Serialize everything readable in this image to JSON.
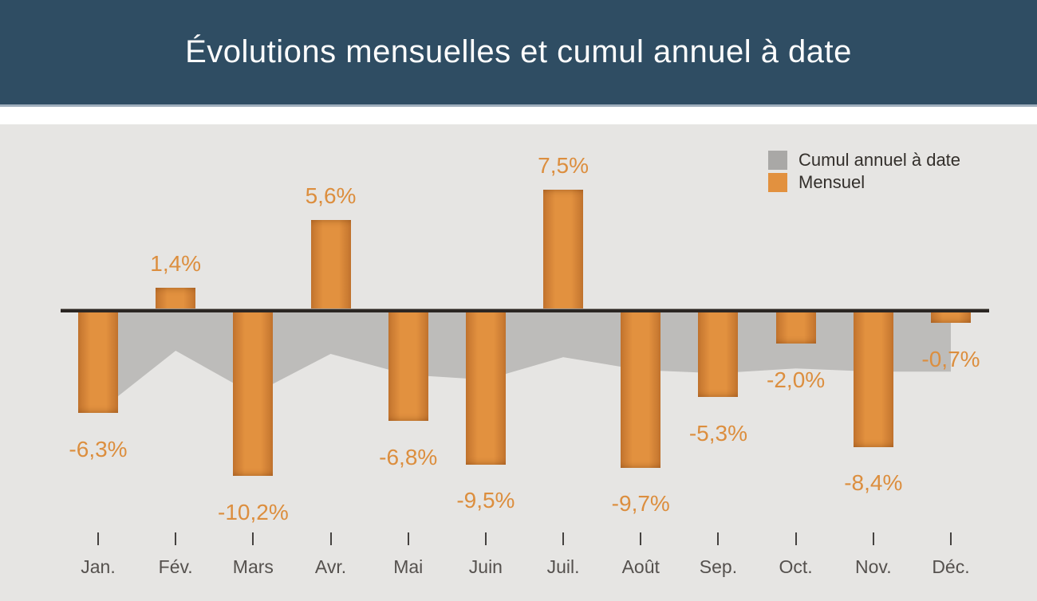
{
  "header": {
    "title": "Évolutions mensuelles et cumul annuel à date"
  },
  "legend": {
    "items": [
      {
        "label": "Cumul annuel à date",
        "swatch_color": "#a9a8a6"
      },
      {
        "label": "Mensuel",
        "swatch_color": "#e2913f"
      }
    ]
  },
  "chart_data": {
    "type": "combo",
    "title": "Évolutions mensuelles et cumul annuel à date",
    "categories": [
      "Jan.",
      "Fév.",
      "Mars",
      "Avr.",
      "Mai",
      "Juin",
      "Juil.",
      "Août",
      "Sep.",
      "Oct.",
      "Nov.",
      "Déc."
    ],
    "series": [
      {
        "name": "Mensuel",
        "type": "bar",
        "unit": "%",
        "values": [
          -6.3,
          1.4,
          -10.2,
          5.6,
          -6.8,
          -9.5,
          7.5,
          -9.7,
          -5.3,
          -2.0,
          -8.4,
          -0.7
        ],
        "value_labels": [
          "-6,3%",
          "1,4%",
          "-10,2%",
          "5,6%",
          "-6,8%",
          "-9,5%",
          "7,5%",
          "-9,7%",
          "-5,3%",
          "-2,0%",
          "-8,4%",
          "-0,7%"
        ],
        "color_center": "#e2913f",
        "color_edge": "#c3742e",
        "label_color": "#dc8e3e"
      },
      {
        "name": "Cumul annuel à date",
        "type": "area",
        "unit": "%",
        "values": [
          -6.3,
          -2.5,
          -5.2,
          -2.7,
          -4.0,
          -4.3,
          -2.9,
          -3.7,
          -3.9,
          -3.6,
          -3.8,
          -3.8
        ],
        "color": "#bdbcba"
      }
    ],
    "ylim": [
      -10.2,
      7.5
    ],
    "baseline": 0,
    "grid": false,
    "legend_position": "top-right",
    "axis_color": "#2b2623",
    "tick_label_color": "#55514e"
  }
}
